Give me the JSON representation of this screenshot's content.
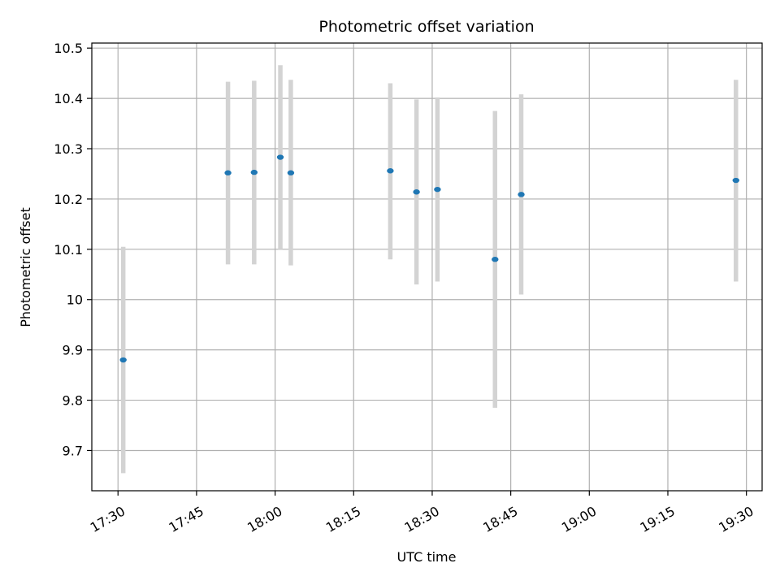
{
  "chart_data": {
    "type": "scatter",
    "title": "Photometric offset variation",
    "xlabel": "UTC time",
    "ylabel": "Photometric offset",
    "grid": true,
    "xlim": [
      "17:25",
      "19:33"
    ],
    "ylim": [
      9.62,
      10.51
    ],
    "x_ticks": [
      "17:30",
      "17:45",
      "18:00",
      "18:15",
      "18:30",
      "18:45",
      "19:00",
      "19:15",
      "19:30"
    ],
    "y_ticks": [
      9.7,
      9.8,
      9.9,
      10.0,
      10.1,
      10.2,
      10.3,
      10.4,
      10.5
    ],
    "series": [
      {
        "marker_color": "#1f77b4",
        "errorbar_color": "#d3d3d3",
        "points": [
          {
            "x": "17:31",
            "y": 9.88,
            "ylow": 9.655,
            "yhigh": 10.105
          },
          {
            "x": "17:51",
            "y": 10.252,
            "ylow": 10.07,
            "yhigh": 10.433
          },
          {
            "x": "17:56",
            "y": 10.253,
            "ylow": 10.07,
            "yhigh": 10.435
          },
          {
            "x": "18:01",
            "y": 10.283,
            "ylow": 10.1,
            "yhigh": 10.466
          },
          {
            "x": "18:03",
            "y": 10.252,
            "ylow": 10.068,
            "yhigh": 10.437
          },
          {
            "x": "18:22",
            "y": 10.256,
            "ylow": 10.08,
            "yhigh": 10.43
          },
          {
            "x": "18:27",
            "y": 10.214,
            "ylow": 10.03,
            "yhigh": 10.398
          },
          {
            "x": "18:31",
            "y": 10.219,
            "ylow": 10.036,
            "yhigh": 10.402
          },
          {
            "x": "18:42",
            "y": 10.08,
            "ylow": 9.785,
            "yhigh": 10.375
          },
          {
            "x": "18:47",
            "y": 10.209,
            "ylow": 10.01,
            "yhigh": 10.408
          },
          {
            "x": "19:28",
            "y": 10.237,
            "ylow": 10.036,
            "yhigh": 10.437
          }
        ]
      }
    ]
  }
}
